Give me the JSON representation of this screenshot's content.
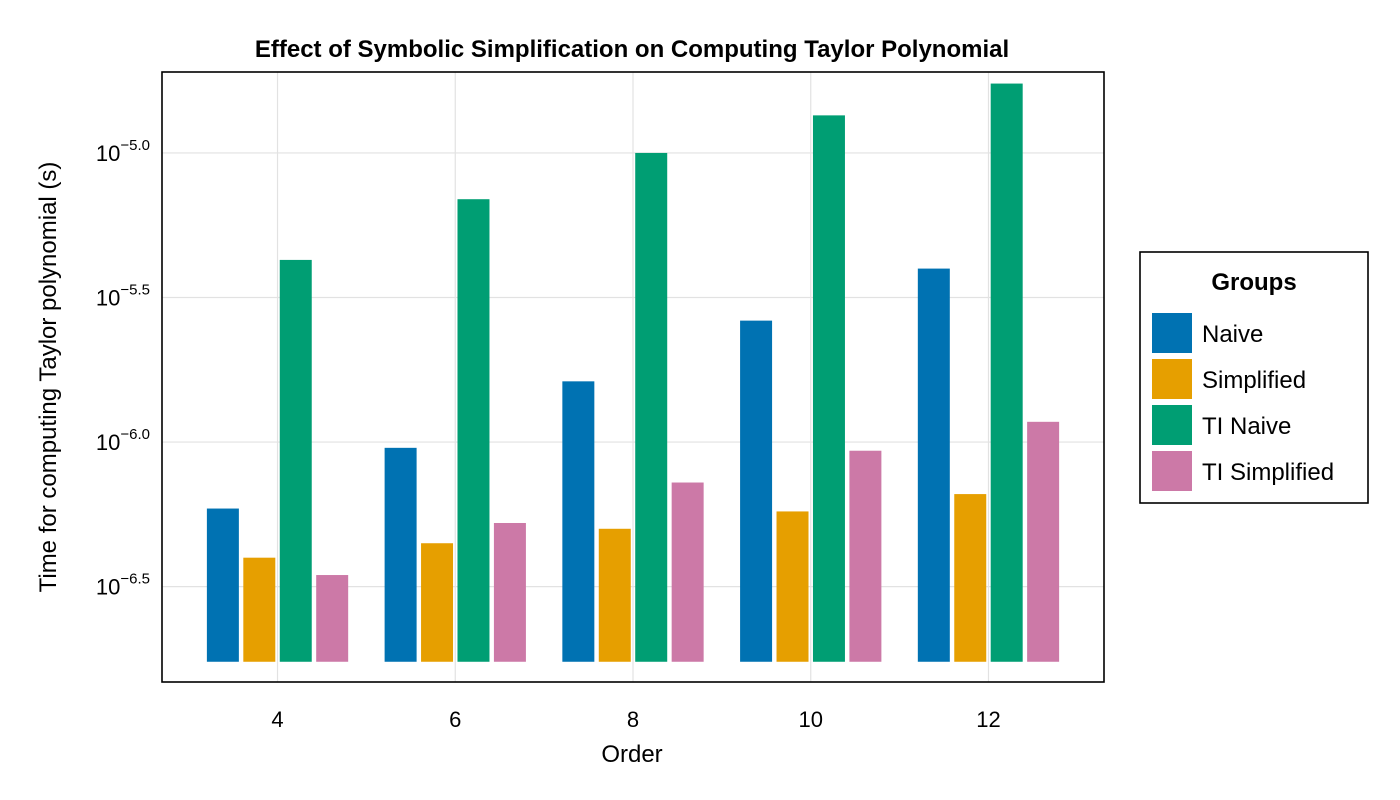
{
  "chart_data": {
    "type": "bar",
    "title": "Effect of Symbolic Simplification on Computing Taylor Polynomial",
    "xlabel": "Order",
    "ylabel": "Time for computing Taylor polynomial (s)",
    "y_scale": "log10",
    "x_ticks": [
      4,
      6,
      8,
      10,
      12
    ],
    "y_ticks": [
      {
        "base": "10",
        "exp": "−6.5",
        "value": -6.5
      },
      {
        "base": "10",
        "exp": "−6.0",
        "value": -6.0
      },
      {
        "base": "10",
        "exp": "−5.5",
        "value": -5.5
      },
      {
        "base": "10",
        "exp": "−5.0",
        "value": -5.0
      }
    ],
    "ylim_log10": [
      -6.83,
      -4.72
    ],
    "bar_baseline_log10": [
      -6.76
    ],
    "x": [
      4,
      6,
      8,
      10,
      12
    ],
    "series": [
      {
        "name": "Naive",
        "color": "#0072b2",
        "log10_values": [
          -6.23,
          -6.02,
          -5.79,
          -5.58,
          -5.4
        ]
      },
      {
        "name": "Simplified",
        "color": "#e69f00",
        "log10_values": [
          -6.4,
          -6.35,
          -6.3,
          -6.24,
          -6.18
        ]
      },
      {
        "name": "TI Naive",
        "color": "#009e73",
        "log10_values": [
          -5.37,
          -5.16,
          -5.0,
          -4.87,
          -4.76
        ]
      },
      {
        "name": "TI Simplified",
        "color": "#cc79a7",
        "log10_values": [
          -6.46,
          -6.28,
          -6.14,
          -6.03,
          -5.93
        ]
      }
    ],
    "grid": true,
    "legend": {
      "title": "Groups",
      "position": "right"
    }
  }
}
